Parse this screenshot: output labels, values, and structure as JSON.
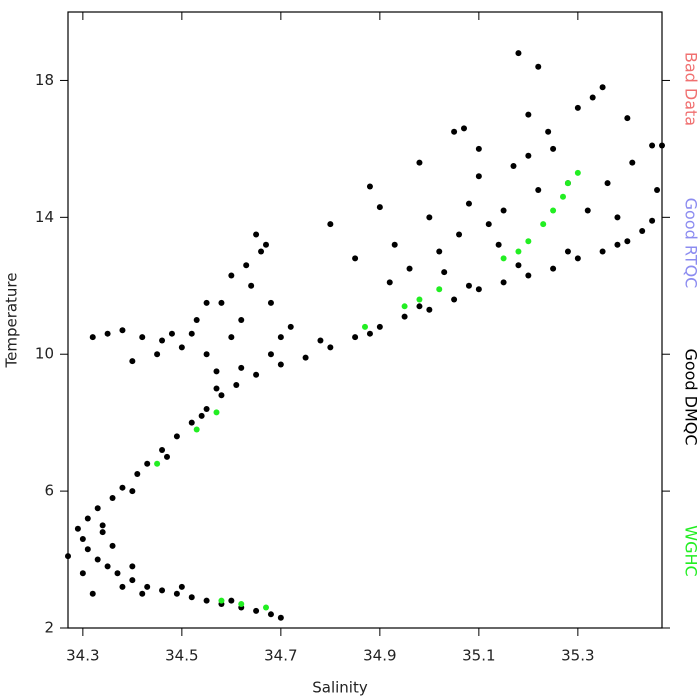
{
  "chart_data": {
    "type": "scatter",
    "x_label": "Salinity",
    "y_label": "Temperature",
    "xlim": [
      34.27,
      35.47
    ],
    "xticks": [
      34.3,
      34.5,
      34.7,
      34.9,
      35.1,
      35.3
    ],
    "ylim": [
      2,
      20
    ],
    "yticks": [
      2,
      6,
      10,
      14,
      18
    ],
    "series": [
      {
        "name": "Bad Data",
        "color": "#f07070",
        "x": [],
        "values": []
      },
      {
        "name": "Good RTQC",
        "color": "#8c8cf0",
        "x": [],
        "values": []
      },
      {
        "name": "Good DMQC",
        "color": "#000000",
        "x": [
          34.7,
          34.68,
          34.65,
          34.62,
          34.58,
          34.55,
          34.52,
          34.49,
          34.46,
          34.43,
          34.4,
          34.37,
          34.35,
          34.33,
          34.31,
          34.3,
          34.29,
          34.31,
          34.33,
          34.36,
          34.38,
          34.41,
          34.43,
          34.46,
          34.49,
          34.52,
          34.55,
          34.58,
          34.61,
          34.65,
          34.7,
          34.75,
          34.8,
          34.85,
          34.9,
          34.95,
          35.0,
          35.05,
          35.1,
          35.15,
          35.2,
          35.25,
          35.3,
          35.35,
          35.4,
          35.43,
          35.45,
          34.32,
          34.34,
          34.36,
          34.4,
          34.38,
          34.27,
          34.3,
          34.34,
          34.42,
          34.6,
          34.5,
          34.4,
          34.47,
          34.54,
          34.57,
          34.62,
          34.68,
          34.78,
          34.88,
          34.98,
          35.08,
          35.18,
          35.28,
          35.38,
          34.6,
          34.62,
          34.58,
          34.64,
          34.63,
          34.66,
          34.65,
          34.67,
          34.6,
          34.55,
          34.52,
          34.5,
          34.48,
          34.45,
          34.42,
          34.38,
          34.35,
          34.32,
          34.4,
          34.55,
          34.68,
          34.7,
          34.72,
          34.57,
          34.53,
          34.46,
          34.88,
          34.9,
          34.93,
          34.92,
          34.96,
          34.98,
          35.0,
          35.02,
          35.05,
          35.07,
          35.08,
          35.06,
          35.1,
          35.12,
          35.15,
          35.17,
          35.18,
          35.2,
          35.22,
          35.24,
          35.2,
          35.22,
          35.25,
          35.28,
          35.3,
          35.33,
          35.35,
          35.36,
          35.4,
          35.41,
          35.45,
          35.47,
          35.46,
          35.38,
          35.32,
          35.1,
          35.14,
          35.03,
          34.85,
          34.8
        ],
        "values": [
          2.3,
          2.4,
          2.5,
          2.6,
          2.7,
          2.8,
          2.9,
          3.0,
          3.1,
          3.2,
          3.4,
          3.6,
          3.8,
          4.0,
          4.3,
          4.6,
          4.9,
          5.2,
          5.5,
          5.8,
          6.1,
          6.5,
          6.8,
          7.2,
          7.6,
          8.0,
          8.4,
          8.8,
          9.1,
          9.4,
          9.7,
          9.9,
          10.2,
          10.5,
          10.8,
          11.1,
          11.3,
          11.6,
          11.9,
          12.1,
          12.3,
          12.5,
          12.8,
          13.0,
          13.3,
          13.6,
          13.9,
          3.0,
          4.8,
          4.4,
          3.8,
          3.2,
          4.1,
          3.6,
          5.0,
          3.0,
          2.8,
          3.2,
          6.0,
          7.0,
          8.2,
          9.0,
          9.6,
          10.0,
          10.4,
          10.6,
          11.4,
          12.0,
          12.6,
          13.0,
          13.2,
          10.5,
          11.0,
          11.5,
          12.0,
          12.6,
          13.0,
          13.5,
          13.2,
          12.3,
          11.5,
          10.6,
          10.2,
          10.6,
          10.0,
          10.5,
          10.7,
          10.6,
          10.5,
          9.8,
          10.0,
          11.5,
          10.5,
          10.8,
          9.5,
          11.0,
          10.4,
          14.9,
          14.3,
          13.2,
          12.1,
          12.5,
          15.6,
          14.0,
          13.0,
          16.5,
          16.6,
          14.4,
          13.5,
          15.2,
          13.8,
          14.2,
          15.5,
          18.8,
          17.0,
          18.4,
          16.5,
          15.8,
          14.8,
          16.0,
          15.0,
          17.2,
          17.5,
          17.8,
          15.0,
          16.9,
          15.6,
          16.1,
          16.1,
          14.8,
          14.0,
          14.2,
          16.0,
          13.2,
          12.4,
          12.8,
          13.8
        ]
      },
      {
        "name": "WGHC",
        "color": "#22ee22",
        "x": [
          34.45,
          34.53,
          34.57,
          34.58,
          34.62,
          34.67,
          34.87,
          34.95,
          34.98,
          35.02,
          35.15,
          35.18,
          35.2,
          35.23,
          35.25,
          35.27,
          35.28,
          35.3
        ],
        "values": [
          6.8,
          7.8,
          8.3,
          2.8,
          2.7,
          2.6,
          10.8,
          11.4,
          11.6,
          11.9,
          12.8,
          13.0,
          13.3,
          13.8,
          14.2,
          14.6,
          15.0,
          15.3
        ]
      }
    ]
  }
}
